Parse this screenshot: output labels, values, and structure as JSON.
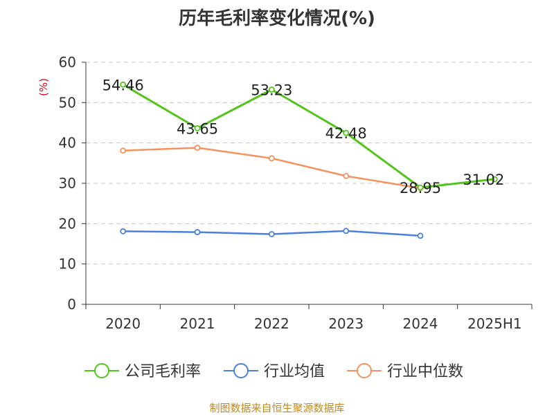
{
  "title": "历年毛利率变化情况(%)",
  "source": "制图数据来自恒生聚源数据库",
  "chart_data": {
    "type": "line",
    "title": "历年毛利率变化情况(%)",
    "xlabel": "",
    "ylabel": "(%)",
    "categories": [
      "2020",
      "2021",
      "2022",
      "2023",
      "2024",
      "2025H1"
    ],
    "ylim": [
      0,
      60
    ],
    "yticks": [
      0,
      10,
      20,
      30,
      40,
      50,
      60
    ],
    "grid": true,
    "legend_position": "bottom",
    "series": [
      {
        "name": "公司毛利率",
        "color": "#52c41a",
        "values": [
          54.46,
          43.65,
          53.23,
          42.48,
          28.95,
          31.02
        ],
        "labels": [
          "54.46",
          "43.65",
          "53.23",
          "42.48",
          "28.95",
          "31.02"
        ]
      },
      {
        "name": "行业均值",
        "color": "#4a7fdc",
        "values": [
          18.1,
          17.9,
          17.4,
          18.2,
          17.0,
          null
        ]
      },
      {
        "name": "行业中位数",
        "color": "#f5915c",
        "values": [
          38.1,
          38.8,
          36.2,
          31.8,
          28.8,
          null
        ]
      }
    ]
  }
}
